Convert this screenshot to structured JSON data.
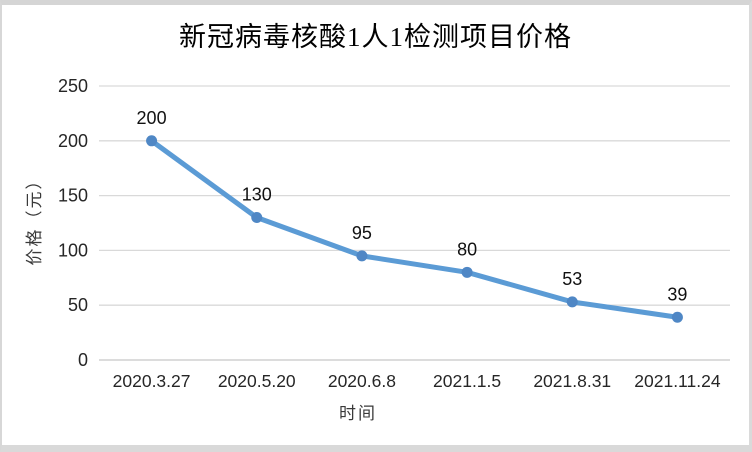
{
  "chart_data": {
    "type": "line",
    "title": "新冠病毒核酸1人1检测项目价格",
    "xlabel": "时间",
    "ylabel": "价格（元）",
    "categories": [
      "2020.3.27",
      "2020.5.20",
      "2020.6.8",
      "2021.1.5",
      "2021.8.31",
      "2021.11.24"
    ],
    "values": [
      200,
      130,
      95,
      80,
      53,
      39
    ],
    "data_labels": [
      "200",
      "130",
      "95",
      "80",
      "53",
      "39"
    ],
    "yticks": [
      0,
      50,
      100,
      150,
      200,
      250
    ],
    "ylim": [
      0,
      250
    ],
    "grid": true,
    "legend": "none",
    "colors": {
      "line": "#5b9bd5",
      "marker": "#4f87c5",
      "gridline": "#d9d9d9",
      "axis_line": "#c6c6c6",
      "tick_text": "#262626",
      "label_text": "#111111",
      "axis_title_text": "#3a3a3a",
      "background": "#ffffff",
      "frame_border": "#d5d5d5"
    }
  }
}
